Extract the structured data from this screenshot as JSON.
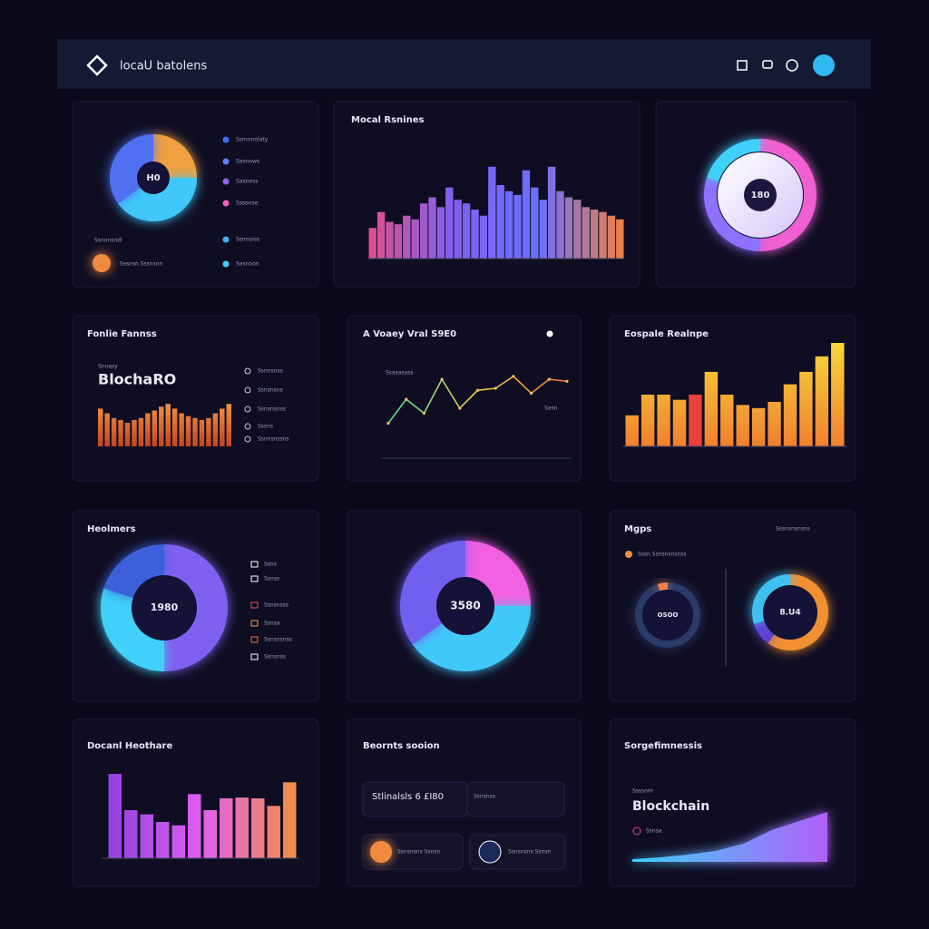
{
  "header": {
    "title": "locaU batolens"
  },
  "donut_card": {
    "center": "H0",
    "segments": [
      {
        "value": 25,
        "color": "#f0a040"
      },
      {
        "value": 40,
        "color": "#40c8f8"
      },
      {
        "value": 35,
        "color": "#5070f0"
      }
    ],
    "legend": [
      {
        "label": "Ssmnnolaty",
        "color": "#4070f0"
      },
      {
        "label": "Sasnows",
        "color": "#6080ff"
      },
      {
        "label": "Sasness",
        "color": "#9060f0"
      },
      {
        "label": "Sssonse",
        "color": "#f060c0"
      },
      {
        "label": "Ssnnoiss",
        "color": "#40b0f0"
      },
      {
        "label": "Sasnoon",
        "color": "#40d0f0"
      }
    ],
    "footer": "Ssnonsndl",
    "badge": "Sssnsn Sssnsnn"
  },
  "bar_card": {
    "title": "Mocal Rsnines",
    "ylim": [
      0,
      100
    ],
    "colors": [
      "#e0508a",
      "#8060f0",
      "#6a70ff",
      "#f08040"
    ],
    "values": [
      25,
      38,
      30,
      28,
      35,
      32,
      45,
      50,
      42,
      58,
      48,
      45,
      40,
      35,
      75,
      60,
      55,
      52,
      72,
      58,
      48,
      75,
      55,
      50,
      48,
      42,
      40,
      38,
      35,
      32
    ]
  },
  "ring_card": {
    "center": "180",
    "segments": [
      {
        "value": 50,
        "color": "#f060d0"
      },
      {
        "value": 30,
        "color": "#9070ff"
      },
      {
        "value": 20,
        "color": "#40d0f8"
      }
    ]
  },
  "blocks_card": {
    "title": "Fonlie Fannss",
    "subtitle": "Snnasy",
    "headline": "BlochaRO",
    "ylim": [
      0,
      50
    ],
    "colors": [
      "#f09040",
      "#c04020"
    ],
    "values": [
      40,
      35,
      30,
      28,
      25,
      28,
      30,
      35,
      38,
      42,
      45,
      40,
      35,
      32,
      30,
      28,
      30,
      35,
      40,
      45
    ],
    "legend": [
      "Ssnnsnss",
      "Ssnsnsns",
      "Ssnsnsnss",
      "Sssns",
      "Ssnnsnssns"
    ]
  },
  "line_card": {
    "title": "A Voaey Vral S9E0",
    "ylim": [
      0,
      100
    ],
    "colors": [
      "#40e0a0",
      "#f0d040",
      "#f07040"
    ],
    "values": [
      35,
      59,
      45,
      79,
      50,
      68,
      70,
      82,
      65,
      79,
      77
    ],
    "note": "Ssasasass",
    "tag": "Sasn"
  },
  "orange_card": {
    "title": "Eospale Realnpe",
    "ylim": [
      0,
      100
    ],
    "colors": [
      "#f08030",
      "#f8d838"
    ],
    "highlight": 4,
    "highlight_color": "#e8403a",
    "values": [
      30,
      50,
      50,
      45,
      50,
      72,
      50,
      40,
      37,
      43,
      60,
      72,
      87,
      100
    ]
  },
  "donut2_card": {
    "title": "Heolmers",
    "center": "1980",
    "segments": [
      {
        "value": 50,
        "color": "#8060f0"
      },
      {
        "value": 30,
        "color": "#40d0f8"
      },
      {
        "value": 20,
        "color": "#3a60d8"
      }
    ],
    "legend": [
      {
        "label": "Ssns",
        "color": "#ffffff"
      },
      {
        "label": "Ssnss",
        "color": "#ffffff"
      },
      {
        "label": "Ssnsnsss",
        "color": "#f05050"
      },
      {
        "label": "Ssnsa",
        "color": "#f0a040"
      },
      {
        "label": "Ssnsnsnss",
        "color": "#f07030"
      },
      {
        "label": "Ssnsnss",
        "color": "#ffffff"
      }
    ]
  },
  "donut3_card": {
    "center": "3580",
    "segments": [
      {
        "value": 25,
        "color": "#f060e0"
      },
      {
        "value": 40,
        "color": "#40c8f8"
      },
      {
        "value": 35,
        "color": "#7060f0"
      }
    ]
  },
  "maps_card": {
    "title": "Mgps",
    "menu": "Sssnsnsnsns",
    "legend": "Sssn Ssnsnsnsnss",
    "left": {
      "center": "OSOO",
      "segments": [
        {
          "value": 95,
          "color": "#2a3a6a"
        },
        {
          "value": 5,
          "color": "#f08050"
        }
      ]
    },
    "right": {
      "center": "8.U4",
      "segments": [
        {
          "value": 60,
          "color": "#f09030"
        },
        {
          "value": 10,
          "color": "#6040d0"
        },
        {
          "value": 30,
          "color": "#40c0f0"
        }
      ]
    }
  },
  "purple_card": {
    "title": "Docanl Heothare",
    "ylim": [
      0,
      100
    ],
    "colors": [
      "#9040e0",
      "#e060f0",
      "#f09040"
    ],
    "values": [
      100,
      57,
      52,
      43,
      39,
      76,
      57,
      71,
      72,
      71,
      62,
      90
    ]
  },
  "events_card": {
    "title": "Beornts sooion",
    "items": [
      "Stlinalsls 6 £I80",
      "Ssnsnss",
      "Ssnsnsns Ssnsn",
      "Ssnsnsns Ssnsn"
    ]
  },
  "area_card": {
    "title": "Sorgefimnessis",
    "subtitle": "Ssssnm",
    "headline": "Blockchain",
    "tag": "Ssnsa",
    "ylim": [
      0,
      100
    ],
    "colors": [
      "#40d0f8",
      "#b060f8"
    ],
    "values": [
      3,
      5,
      8,
      12,
      20,
      35,
      45,
      55
    ]
  }
}
